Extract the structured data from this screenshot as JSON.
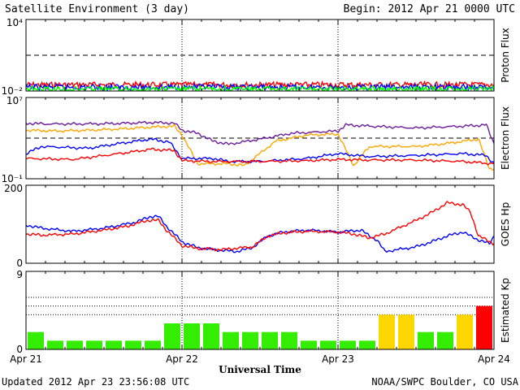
{
  "header": {
    "title": "Satellite Environment (3 day)",
    "begin": "Begin:  2012 Apr 21 0000 UTC"
  },
  "footer": {
    "updated": "Updated 2012 Apr 23 23:56:08 UTC",
    "source": "NOAA/SWPC Boulder, CO USA"
  },
  "x_axis": {
    "label": "Universal Time",
    "ticks": [
      "Apr 21",
      "Apr 22",
      "Apr 23",
      "Apr 24"
    ]
  },
  "colors": {
    "red": "#ff0000",
    "blue": "#0000ff",
    "green": "#00ff00",
    "orange": "#ffa500",
    "purple": "#6a1b9a",
    "kp_green": "#33ee00",
    "kp_yellow": "#ffd700",
    "kp_red": "#ff0000"
  },
  "chart_data": [
    {
      "type": "line",
      "ylabel": "Proton Flux",
      "yscale": "log",
      "ylim": [
        0.01,
        10000
      ],
      "yticks": {
        "top": "10⁴",
        "bottom": "10⁻²"
      },
      "threshold": 10,
      "x_unit": "days since Apr 21 00 UT",
      "series": [
        {
          "color": "red",
          "x": [
            0,
            3
          ],
          "y": [
            0.033,
            0.033
          ]
        },
        {
          "color": "blue",
          "x": [
            0,
            3
          ],
          "y": [
            0.021,
            0.021
          ]
        },
        {
          "color": "green",
          "x": [
            0,
            3
          ],
          "y": [
            0.014,
            0.014
          ]
        }
      ]
    },
    {
      "type": "line",
      "ylabel": "Electron Flux",
      "yscale": "log",
      "ylim": [
        0.1,
        10000000
      ],
      "yticks": {
        "top": "10⁷",
        "bottom": "10⁻¹"
      },
      "threshold": 1000,
      "series": [
        {
          "color": "purple",
          "x": [
            0,
            0.1,
            0.4,
            0.6,
            0.8,
            0.95,
            1.0,
            1.1,
            1.2,
            1.3,
            1.5,
            1.7,
            2.0,
            2.05,
            2.2,
            2.5,
            2.8,
            2.95,
            3.0
          ],
          "y": [
            30000,
            25000,
            25000,
            28000,
            35000,
            30000,
            6000,
            3000,
            500,
            250,
            800,
            3000,
            5000,
            20000,
            15000,
            10000,
            15000,
            20000,
            300
          ]
        },
        {
          "color": "orange",
          "x": [
            0,
            0.2,
            0.4,
            0.6,
            0.8,
            0.95,
            1.0,
            1.1,
            1.3,
            1.4,
            1.6,
            1.8,
            2.0,
            2.1,
            2.2,
            2.5,
            2.7,
            2.9,
            2.97,
            3.0
          ],
          "y": [
            6000,
            5000,
            6000,
            8000,
            12000,
            15000,
            2000,
            3,
            3,
            2,
            500,
            2000,
            2500,
            2,
            150,
            150,
            300,
            800,
            1,
            1
          ]
        },
        {
          "color": "blue",
          "x": [
            0,
            0.1,
            0.4,
            0.6,
            0.8,
            0.92,
            1.0,
            1.2,
            1.3,
            1.5,
            1.8,
            2.0,
            2.2,
            2.5,
            2.8,
            2.95,
            3.0
          ],
          "y": [
            30,
            150,
            100,
            300,
            800,
            400,
            10,
            10,
            5,
            5,
            10,
            30,
            15,
            20,
            30,
            20,
            3
          ]
        },
        {
          "color": "red",
          "x": [
            0,
            0.3,
            0.6,
            0.8,
            0.95,
            1.0,
            1.2,
            1.5,
            1.8,
            2.0,
            2.2,
            2.5,
            2.8,
            3.0
          ],
          "y": [
            10,
            8,
            30,
            80,
            60,
            6,
            5,
            5,
            6,
            8,
            7,
            7,
            5,
            3
          ]
        }
      ]
    },
    {
      "type": "line",
      "ylabel": "GOES Hp",
      "ylim": [
        0,
        200
      ],
      "yticks": {
        "top": "200",
        "bottom": "0"
      },
      "series": [
        {
          "color": "blue",
          "x": [
            0,
            0.1,
            0.3,
            0.5,
            0.7,
            0.8,
            0.85,
            0.9,
            1.0,
            1.1,
            1.2,
            1.35,
            1.45,
            1.55,
            1.65,
            1.8,
            2.0,
            2.15,
            2.2,
            2.25,
            2.3,
            2.5,
            2.6,
            2.7,
            2.8,
            2.9,
            2.97,
            3.0
          ],
          "y": [
            98,
            90,
            82,
            90,
            105,
            120,
            120,
            95,
            55,
            40,
            35,
            30,
            40,
            70,
            80,
            85,
            80,
            85,
            70,
            60,
            30,
            42,
            55,
            70,
            80,
            60,
            50,
            70
          ]
        },
        {
          "color": "red",
          "x": [
            0,
            0.1,
            0.3,
            0.5,
            0.65,
            0.78,
            0.85,
            0.9,
            1.0,
            1.1,
            1.25,
            1.45,
            1.55,
            1.65,
            1.8,
            2.0,
            2.1,
            2.15,
            2.2,
            2.3,
            2.5,
            2.6,
            2.7,
            2.8,
            2.85,
            2.9,
            3.0
          ],
          "y": [
            75,
            72,
            75,
            85,
            95,
            110,
            110,
            85,
            45,
            38,
            35,
            42,
            70,
            78,
            82,
            80,
            75,
            70,
            65,
            75,
            110,
            130,
            155,
            150,
            130,
            70,
            50
          ]
        }
      ]
    },
    {
      "type": "bar",
      "ylabel": "Estimated Kp",
      "ylim": [
        0,
        9
      ],
      "yticks": {
        "top": "9",
        "bottom": "0"
      },
      "levels": [
        4,
        5,
        6
      ],
      "values": [
        2,
        1,
        1,
        1,
        1,
        1,
        1,
        3,
        3,
        3,
        2,
        2,
        2,
        2,
        1,
        1,
        1,
        1,
        4,
        4,
        2,
        2,
        4,
        5
      ],
      "colors": [
        "kp_green",
        "kp_green",
        "kp_green",
        "kp_green",
        "kp_green",
        "kp_green",
        "kp_green",
        "kp_green",
        "kp_green",
        "kp_green",
        "kp_green",
        "kp_green",
        "kp_green",
        "kp_green",
        "kp_green",
        "kp_green",
        "kp_green",
        "kp_green",
        "kp_yellow",
        "kp_yellow",
        "kp_green",
        "kp_green",
        "kp_yellow",
        "kp_red"
      ]
    }
  ]
}
